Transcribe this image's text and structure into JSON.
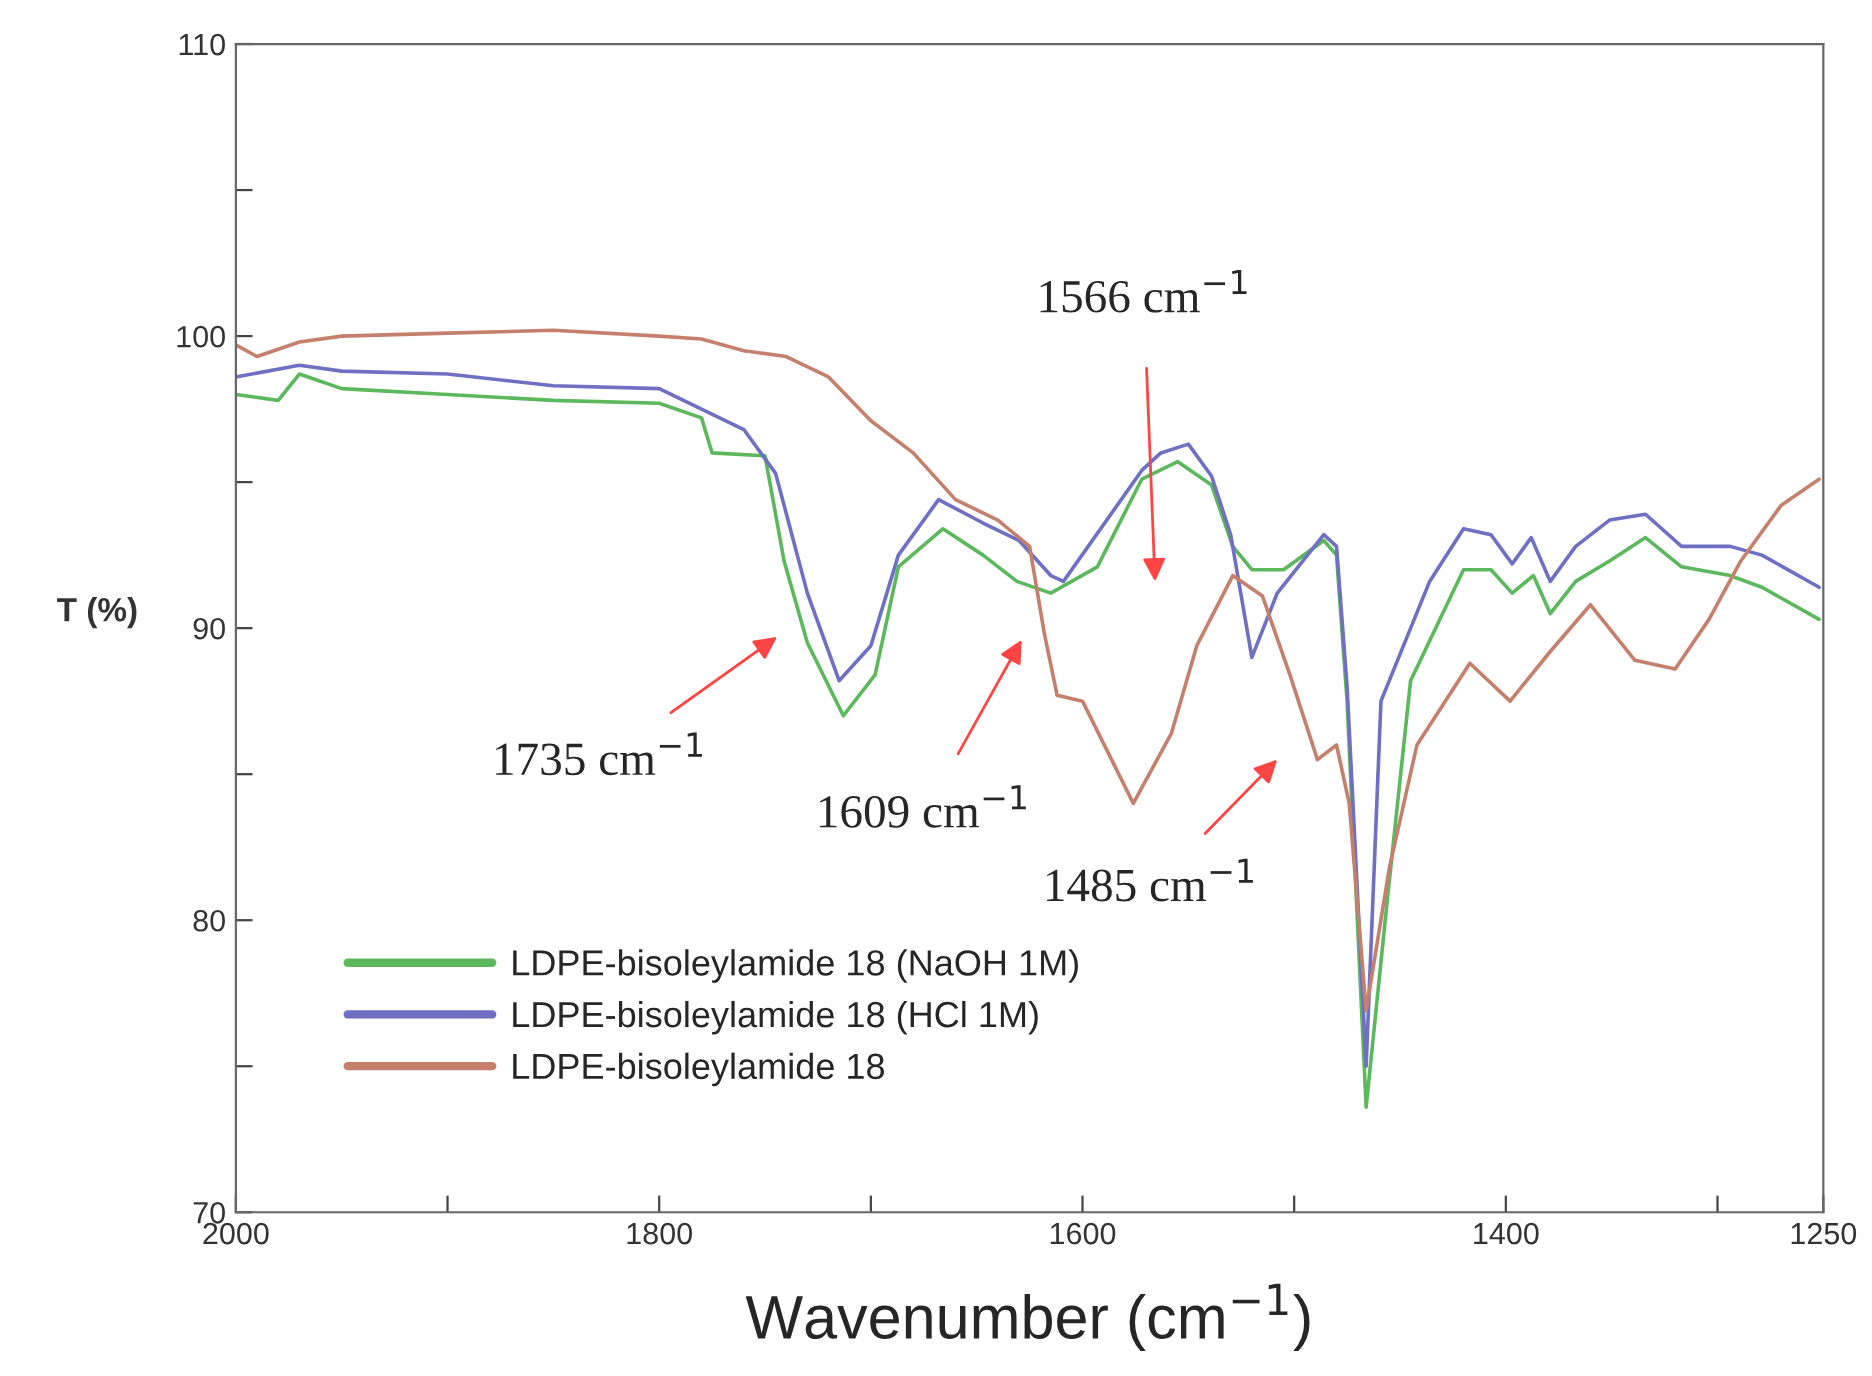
{
  "chart_data": {
    "type": "line",
    "xlabel": "Wavenumber (cm$^{−1}$)",
    "ylabel": "T (%)",
    "xlim": [
      2000,
      1250
    ],
    "xticks": [
      2000,
      {
        "value": 1900,
        "label": null
      },
      1800,
      {
        "value": 1700,
        "label": null
      },
      1600,
      {
        "value": 1500,
        "label": null
      },
      1400,
      {
        "value": 1300,
        "label": null
      },
      1250
    ],
    "ylim": [
      70,
      110
    ],
    "yticks": [
      70,
      {
        "value": 75,
        "label": null
      },
      80,
      {
        "value": 85,
        "label": null
      },
      90,
      {
        "value": 95,
        "label": null
      },
      100,
      {
        "value": 105,
        "label": null
      },
      110
    ],
    "grid": false,
    "legend": "bottom left",
    "line_style": "solid",
    "marker": "none",
    "series": [
      {
        "name": "LDPE-bisoleylamide 18 (NaOH 1M)",
        "color": "#5cb85c",
        "x": [
          2000,
          1980,
          1970,
          1950,
          1900,
          1850,
          1800,
          1780,
          1775,
          1750,
          1741,
          1730,
          1713,
          1698,
          1687,
          1666,
          1647,
          1631,
          1615,
          1593,
          1572,
          1555,
          1539,
          1529,
          1520,
          1505,
          1486,
          1480,
          1475,
          1466,
          1456,
          1445,
          1420,
          1407,
          1397,
          1387,
          1379,
          1367,
          1351,
          1334,
          1317,
          1294,
          1279,
          1252
        ],
        "values": [
          98.0,
          97.8,
          98.7,
          98.2,
          98.0,
          97.8,
          97.7,
          97.2,
          96.0,
          95.9,
          92.3,
          89.5,
          87.0,
          88.4,
          92.1,
          93.4,
          92.5,
          91.6,
          91.2,
          92.1,
          95.1,
          95.7,
          94.9,
          92.8,
          92.0,
          92.0,
          93.0,
          92.5,
          87.5,
          73.6,
          80.7,
          88.2,
          92.0,
          92.0,
          91.2,
          91.8,
          90.5,
          91.6,
          92.3,
          93.1,
          92.1,
          91.8,
          91.4,
          90.3
        ]
      },
      {
        "name": "LDPE-bisoleylamide 18 (HCl 1M)",
        "color": "#6f6fc4",
        "x": [
          2000,
          1970,
          1950,
          1900,
          1850,
          1800,
          1780,
          1760,
          1745,
          1730,
          1715,
          1700,
          1687,
          1668,
          1647,
          1630,
          1615,
          1609,
          1572,
          1563,
          1550,
          1539,
          1530,
          1520,
          1508,
          1486,
          1480,
          1475,
          1466,
          1459,
          1436,
          1420,
          1407,
          1397,
          1388,
          1379,
          1367,
          1351,
          1334,
          1317,
          1294,
          1279,
          1252
        ],
        "values": [
          98.6,
          99.0,
          98.8,
          98.7,
          98.3,
          98.2,
          97.5,
          96.8,
          95.3,
          91.2,
          88.2,
          89.4,
          92.5,
          94.4,
          93.6,
          93.0,
          91.8,
          91.6,
          95.4,
          96.0,
          96.3,
          95.2,
          93.2,
          89.0,
          91.2,
          93.2,
          92.8,
          88.0,
          75.0,
          87.5,
          91.6,
          93.4,
          93.2,
          92.2,
          93.1,
          91.6,
          92.8,
          93.7,
          93.9,
          92.8,
          92.8,
          92.5,
          91.4
        ]
      },
      {
        "name": "LDPE-bisoleylamide 18",
        "color": "#c4806c",
        "x": [
          2000,
          1990,
          1970,
          1950,
          1900,
          1850,
          1800,
          1780,
          1760,
          1740,
          1720,
          1700,
          1680,
          1660,
          1640,
          1625,
          1618,
          1612,
          1600,
          1576,
          1558,
          1546,
          1529,
          1515,
          1502,
          1489,
          1480,
          1474,
          1466,
          1455,
          1442,
          1417,
          1398,
          1379,
          1360,
          1339,
          1320,
          1304,
          1289,
          1270,
          1252
        ],
        "values": [
          99.7,
          99.3,
          99.8,
          100.0,
          100.1,
          100.2,
          100.0,
          99.9,
          99.5,
          99.3,
          98.6,
          97.1,
          96.0,
          94.4,
          93.7,
          92.8,
          89.8,
          87.7,
          87.5,
          84.0,
          86.4,
          89.4,
          91.8,
          91.1,
          88.4,
          85.5,
          86.0,
          84.0,
          76.9,
          81.8,
          86.0,
          88.8,
          87.5,
          89.2,
          90.8,
          88.9,
          88.6,
          90.3,
          92.3,
          94.2,
          95.1
        ]
      }
    ],
    "annotations": [
      "1566 cm$^{−1}$",
      "1735 cm$^{−1}$",
      "1609 cm$^{−1}$",
      "1485 cm$^{−1}$"
    ]
  }
}
